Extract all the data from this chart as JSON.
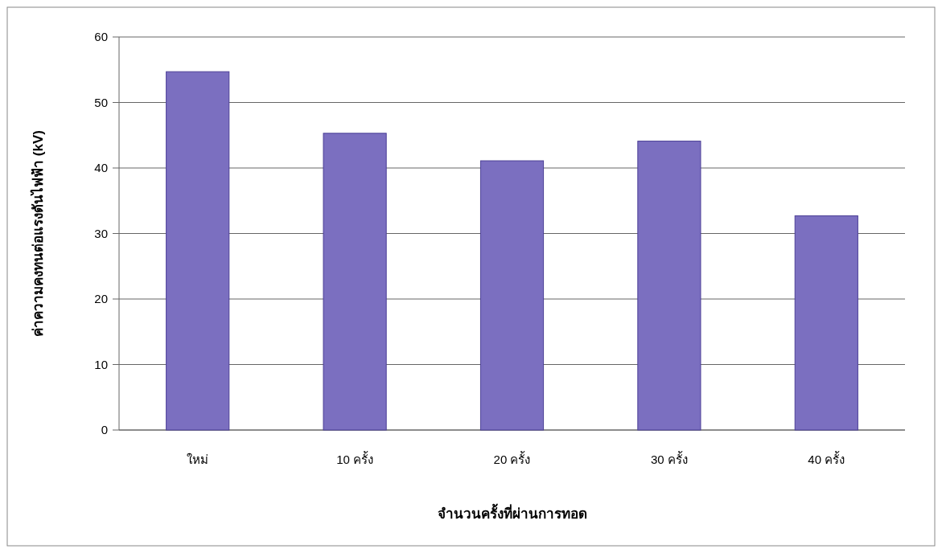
{
  "chart_data": {
    "type": "bar",
    "xlabel": "จำนวนครั้งที่ผ่านการทอด",
    "ylabel": "ค่าความคงทนต่อแรงดันไฟฟ้า (kV)",
    "categories": [
      "ใหม่",
      "10 ครั้ง",
      "20 ครั้ง",
      "30 ครั้ง",
      "40 ครั้ง"
    ],
    "values": [
      54.7,
      45.3,
      41.1,
      44.1,
      32.7
    ],
    "color": "#7b6fc0",
    "ylim": [
      0,
      60
    ],
    "yticks": [
      0,
      10,
      20,
      30,
      40,
      50,
      60
    ],
    "grid": "y"
  }
}
